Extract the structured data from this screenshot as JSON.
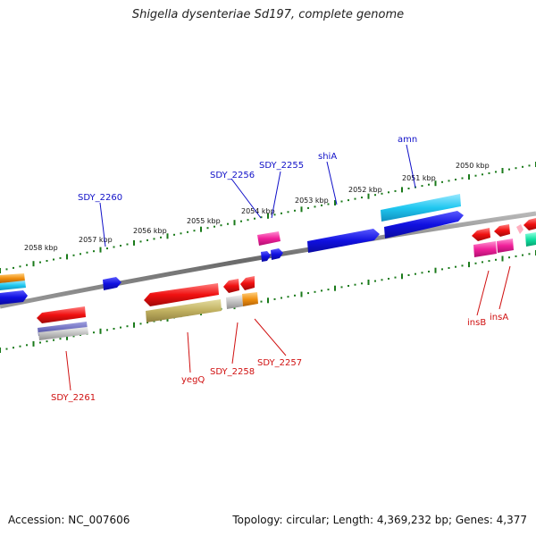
{
  "title": "Shigella dysenteriae Sd197, complete genome",
  "footer": {
    "accession": "Accession: NC_007606",
    "topology": "Topology: circular; Length: 4,369,232 bp; Genes: 4,377"
  },
  "colors": {
    "backbone": "#7a7a7a",
    "ticks": "#1a7a1a",
    "forward_label": "#1010c8",
    "reverse_label": "#d01010",
    "blue": "#1010e0",
    "cyan": "#20c8f0",
    "magenta": "#f0209a",
    "red": "#f01010",
    "olive": "#c0b060",
    "slate": "#7070c0",
    "gray": "#c0c0c0",
    "orange": "#f09010",
    "green": "#10e0a0"
  },
  "scale_labels": [
    "2058 kbp",
    "2057 kbp",
    "2056 kbp",
    "2055 kbp",
    "2054 kbp",
    "2053 kbp",
    "2052 kbp",
    "2051 kbp",
    "2050 kbp"
  ],
  "forward_gene_labels": [
    "SDY_2260",
    "SDY_2256",
    "SDY_2255",
    "shiA",
    "amn"
  ],
  "reverse_gene_labels": [
    "SDY_2261",
    "yegQ",
    "SDY_2258",
    "SDY_2257",
    "insB",
    "insA"
  ]
}
